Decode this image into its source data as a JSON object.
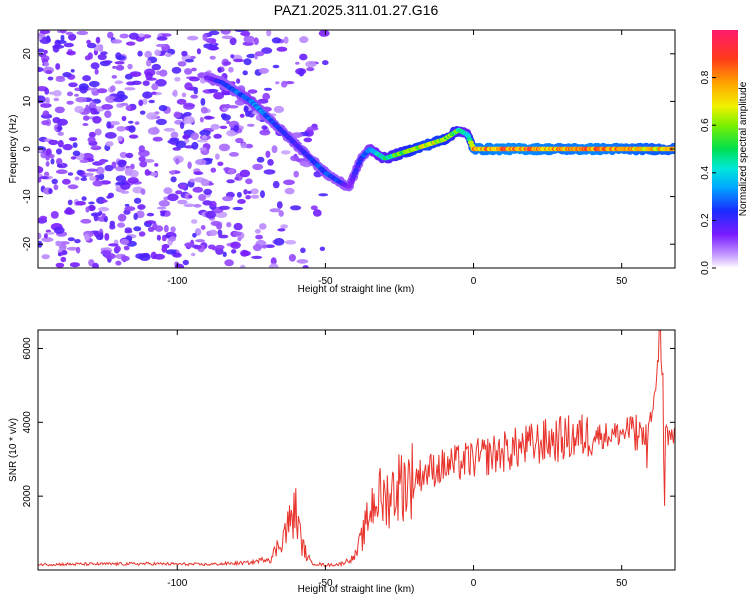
{
  "title": "PAZ1.2025.311.01.27.G16",
  "chart_data": [
    {
      "type": "heatmap",
      "title": "PAZ1.2025.311.01.27.G16",
      "xlabel": "Height of straight line (km)",
      "ylabel": "Frequency (Hz)",
      "xlim": [
        -147,
        68
      ],
      "ylim": [
        -25,
        25
      ],
      "xticks": [
        -100,
        -50,
        0,
        50
      ],
      "xtick_labels": [
        "-100",
        "-50",
        "0",
        "50"
      ],
      "yticks": [
        -20,
        -10,
        0,
        10,
        20
      ],
      "ytick_labels": [
        "-20",
        "-10",
        "0",
        "10",
        "20"
      ],
      "colorbar": {
        "label": "Normalized spectral amplitude",
        "ticks": [
          0.0,
          0.2,
          0.4,
          0.6,
          0.8
        ],
        "tick_labels": [
          "0.0",
          "0.2",
          "0.4",
          "0.6",
          "0.8"
        ],
        "range": [
          0,
          1
        ]
      },
      "signal_ridge": {
        "x": [
          -90,
          -85,
          -80,
          -75,
          -70,
          -65,
          -60,
          -55,
          -50,
          -45,
          -42,
          -38,
          -35,
          -30,
          -25,
          -20,
          -15,
          -10,
          -5,
          -2,
          0,
          10,
          20,
          30,
          40,
          50,
          60,
          68
        ],
        "frequency": [
          15,
          14,
          12,
          10,
          7,
          4,
          1,
          -2,
          -5,
          -7,
          -8,
          -2,
          0,
          -2,
          -1,
          0,
          1,
          2,
          4,
          3,
          0,
          0,
          0,
          0,
          0,
          0,
          0,
          0
        ],
        "amplitude": [
          0.15,
          0.25,
          0.3,
          0.35,
          0.3,
          0.25,
          0.2,
          0.25,
          0.3,
          0.25,
          0.15,
          0.25,
          0.35,
          0.5,
          0.6,
          0.7,
          0.75,
          0.7,
          0.55,
          0.45,
          0.85,
          0.9,
          0.9,
          0.85,
          0.9,
          0.85,
          0.8,
          0.8
        ]
      },
      "background_noise": {
        "x_range": [
          -147,
          -50
        ],
        "frequency_range": [
          -25,
          25
        ],
        "amplitude_range": [
          0.05,
          0.2
        ]
      }
    },
    {
      "type": "line",
      "xlabel": "Height of straight line (km)",
      "ylabel": "SNR (10 * v/v)",
      "xlim": [
        -147,
        68
      ],
      "ylim": [
        0,
        6500
      ],
      "xticks": [
        -100,
        -50,
        0,
        50
      ],
      "xtick_labels": [
        "-100",
        "-50",
        "0",
        "50"
      ],
      "yticks": [
        2000,
        4000,
        6000
      ],
      "ytick_labels": [
        "2000",
        "4000",
        "6000"
      ],
      "color": "#e8342c",
      "series": [
        {
          "name": "SNR",
          "x": [
            -147,
            -130,
            -110,
            -90,
            -75,
            -68,
            -65,
            -62,
            -60,
            -58,
            -55,
            -50,
            -45,
            -40,
            -37,
            -35,
            -33,
            -30,
            -25,
            -20,
            -15,
            -10,
            -5,
            0,
            5,
            10,
            15,
            20,
            25,
            30,
            35,
            40,
            45,
            50,
            53,
            55,
            57,
            60,
            62,
            63,
            65,
            68
          ],
          "values": [
            150,
            160,
            170,
            150,
            200,
            350,
            800,
            1300,
            1600,
            700,
            200,
            130,
            160,
            350,
            1000,
            1600,
            2000,
            1900,
            2300,
            2500,
            2700,
            2800,
            2900,
            3000,
            3100,
            3200,
            3300,
            3400,
            3500,
            3550,
            3600,
            3650,
            3650,
            3700,
            3800,
            4200,
            3500,
            4000,
            5500,
            6500,
            3700,
            3600
          ]
        }
      ]
    }
  ]
}
